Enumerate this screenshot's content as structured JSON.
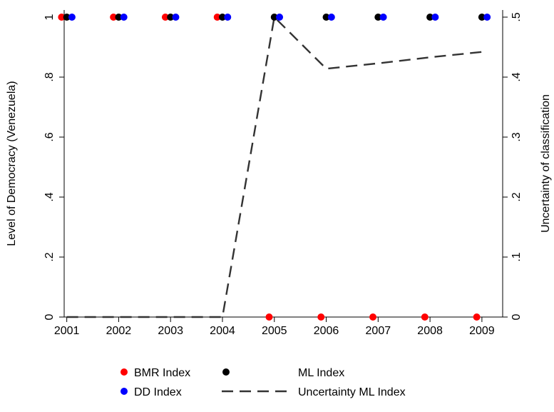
{
  "chart_data": {
    "type": "scatter",
    "ylabel": "Level of Democracy (Venezuela)",
    "y2label": "Uncertainty of classification",
    "x": [
      2001,
      2002,
      2003,
      2004,
      2005,
      2006,
      2007,
      2008,
      2009
    ],
    "x_ticks": [
      "2001",
      "2002",
      "2003",
      "2004",
      "2005",
      "2006",
      "2007",
      "2008",
      "2009"
    ],
    "xlim": [
      2000.95,
      2009.4
    ],
    "ylim": [
      0,
      1
    ],
    "y_ticks": [
      {
        "value": 0,
        "label": "0"
      },
      {
        "value": 0.2,
        "label": ".2"
      },
      {
        "value": 0.4,
        "label": ".4"
      },
      {
        "value": 0.6,
        "label": ".6"
      },
      {
        "value": 0.8,
        "label": ".8"
      },
      {
        "value": 1,
        "label": "1"
      }
    ],
    "y2lim": [
      0,
      0.5
    ],
    "y2_ticks": [
      {
        "value": 0,
        "label": "0"
      },
      {
        "value": 0.1,
        "label": ".1"
      },
      {
        "value": 0.2,
        "label": ".2"
      },
      {
        "value": 0.3,
        "label": ".3"
      },
      {
        "value": 0.4,
        "label": ".4"
      },
      {
        "value": 0.5,
        "label": ".5"
      }
    ],
    "series": [
      {
        "name": "BMR Index",
        "kind": "points",
        "color": "#ff0000",
        "x_offset": -0.1,
        "axis": "left",
        "values": [
          1,
          1,
          1,
          1,
          0,
          0,
          0,
          0,
          0
        ]
      },
      {
        "name": "ML Index",
        "kind": "points",
        "color": "#000000",
        "x_offset": 0,
        "axis": "left",
        "values": [
          1,
          1,
          1,
          1,
          1,
          1,
          1,
          1,
          1
        ]
      },
      {
        "name": "DD Index",
        "kind": "points",
        "color": "#0000ff",
        "x_offset": 0.1,
        "axis": "left",
        "values": [
          1,
          1,
          1,
          1,
          1,
          1,
          1,
          1,
          1
        ]
      },
      {
        "name": "Uncertainty ML Index",
        "kind": "dashed-line",
        "color": "#333333",
        "axis": "right",
        "values": [
          0,
          0,
          0,
          0,
          0.5,
          0.414,
          0.423,
          0.433,
          0.442
        ]
      }
    ],
    "legend": {
      "placement": "bottom",
      "entries": [
        "BMR Index",
        "ML Index",
        "DD Index",
        "Uncertainty ML Index"
      ]
    }
  }
}
